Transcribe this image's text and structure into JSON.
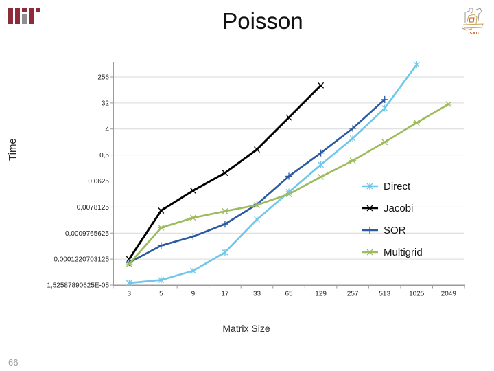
{
  "slide": {
    "title": "Poisson",
    "page_number": "66"
  },
  "logos": {
    "mit": "MIT",
    "csail_label": "CSAIL"
  },
  "chart_data": {
    "type": "line",
    "title": "Poisson",
    "xlabel": "Matrix Size",
    "ylabel": "Time",
    "x_scale": "log-categories",
    "y_scale": "log8",
    "grid": "horizontal",
    "legend_position": "inside-right",
    "x_axis": {
      "title": "Matrix Size",
      "categories": [
        "3",
        "5",
        "9",
        "17",
        "33",
        "65",
        "129",
        "257",
        "513",
        "1025",
        "2049"
      ]
    },
    "y_axis": {
      "title": "Time",
      "tick_labels": [
        "256",
        "32",
        "4",
        "0,5",
        "0,0625",
        "0,0078125",
        "0,0009765625",
        "0,0001220703125",
        "1,52587890625E-05"
      ],
      "tick_values": [
        256,
        32,
        4,
        0.5,
        0.0625,
        0.0078125,
        0.0009765625,
        0.0001220703125,
        1.52587890625e-05
      ]
    },
    "series": [
      {
        "name": "Direct",
        "color": "#6FC7E9",
        "marker": "star",
        "values": [
          1.8e-05,
          2.3e-05,
          4.8e-05,
          0.00021,
          0.0029,
          0.026,
          0.23,
          1.9,
          21,
          690
        ]
      },
      {
        "name": "Jacobi",
        "color": "#000000",
        "marker": "x",
        "values": [
          0.000122,
          0.0059,
          0.029,
          0.12,
          0.78,
          10,
          130
        ]
      },
      {
        "name": "SOR",
        "color": "#2C5AA0",
        "marker": "plus",
        "values": [
          9.3e-05,
          0.00036,
          0.00074,
          0.002,
          0.0097,
          0.092,
          0.59,
          4.2,
          42
        ]
      },
      {
        "name": "Multigrid",
        "color": "#9CBB5C",
        "marker": "xdash",
        "values": [
          8.3e-05,
          0.0015,
          0.0033,
          0.0056,
          0.0092,
          0.022,
          0.087,
          0.32,
          1.4,
          6.6,
          29
        ]
      }
    ],
    "colors": {
      "gridline": "#D9D9D9",
      "axis": "#9B9B9B",
      "tick_text": "#1f1f1f"
    }
  }
}
